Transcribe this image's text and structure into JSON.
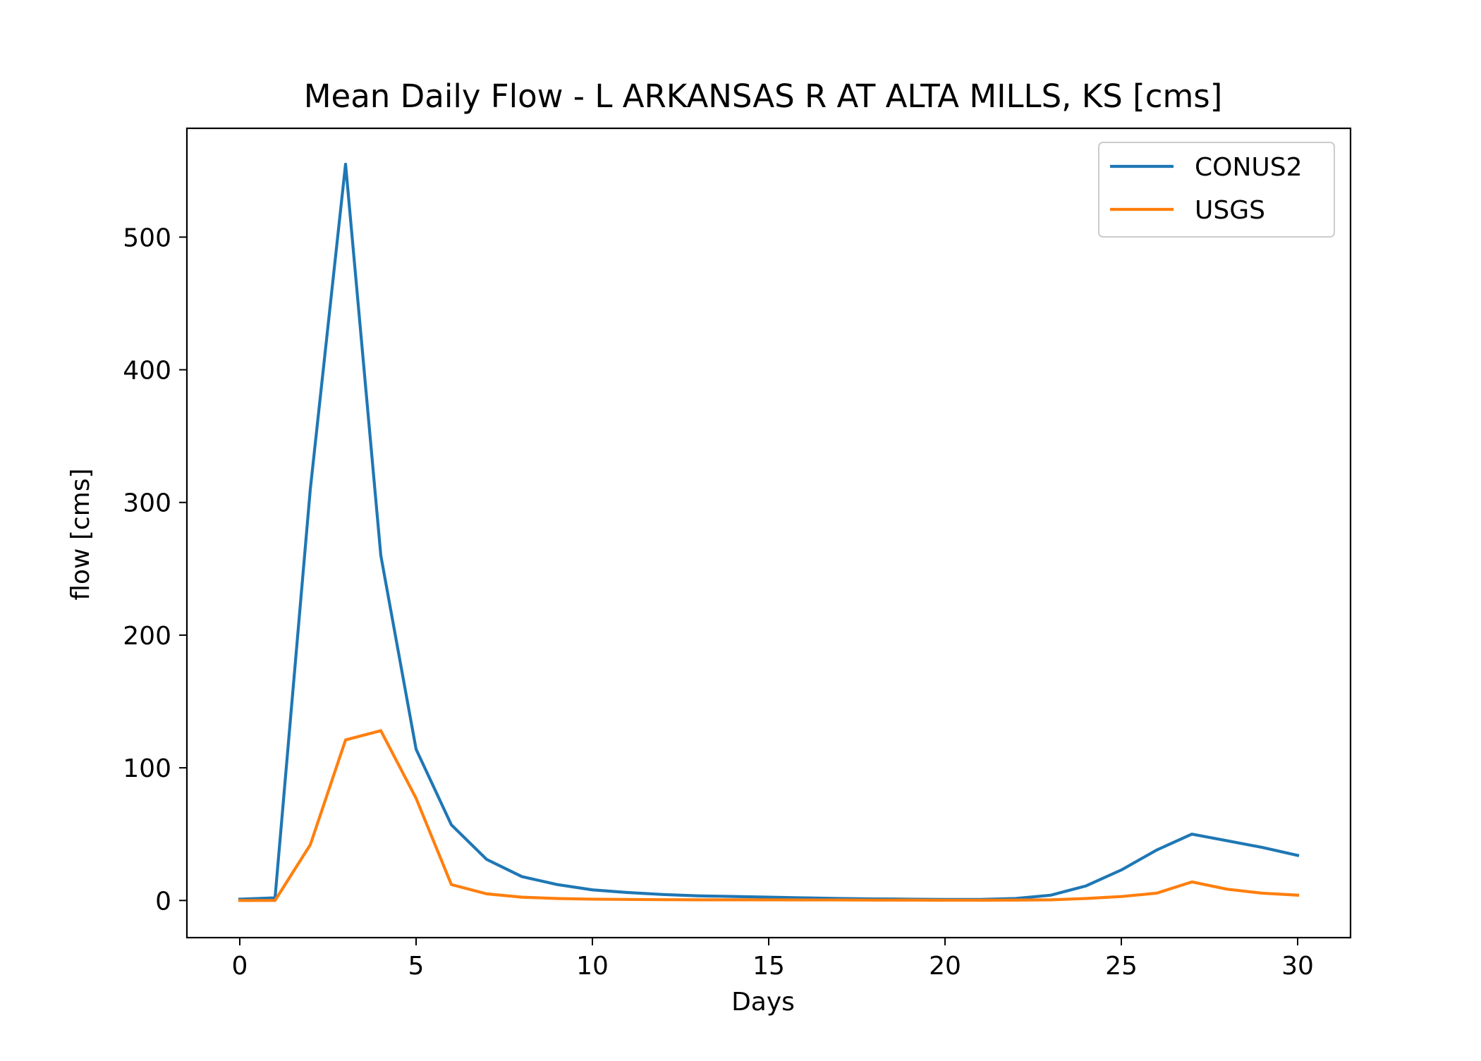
{
  "chart_data": {
    "type": "line",
    "title": "Mean Daily Flow - L ARKANSAS R AT ALTA MILLS, KS [cms]",
    "xlabel": "Days",
    "ylabel": "flow [cms]",
    "xlim": [
      -1.5,
      31.5
    ],
    "ylim": [
      -28,
      582
    ],
    "xticks": [
      0,
      5,
      10,
      15,
      20,
      25,
      30
    ],
    "yticks": [
      0,
      100,
      200,
      300,
      400,
      500
    ],
    "grid": false,
    "legend_position": "top-right",
    "x": [
      0,
      1,
      2,
      3,
      4,
      5,
      6,
      7,
      8,
      9,
      10,
      11,
      12,
      13,
      14,
      15,
      16,
      17,
      18,
      19,
      20,
      21,
      22,
      23,
      24,
      25,
      26,
      27,
      28,
      29,
      30
    ],
    "series": [
      {
        "name": "CONUS2",
        "color": "#1f77b4",
        "values": [
          1,
          2,
          310,
          555,
          260,
          114,
          57,
          31,
          18,
          12,
          8,
          6,
          4.5,
          3.5,
          3,
          2.5,
          2,
          1.5,
          1.2,
          1,
          0.8,
          0.8,
          1.5,
          4,
          11,
          23,
          38,
          50,
          45,
          40,
          34
        ]
      },
      {
        "name": "USGS",
        "color": "#ff7f0e",
        "values": [
          0,
          0,
          42,
          121,
          128,
          77,
          12,
          5,
          2.5,
          1.5,
          1,
          0.8,
          0.6,
          0.5,
          0.5,
          0.5,
          0.4,
          0.4,
          0.3,
          0.3,
          0.2,
          0.2,
          0.3,
          0.5,
          1.5,
          3,
          5.5,
          14,
          8.5,
          5.5,
          4
        ]
      }
    ]
  }
}
